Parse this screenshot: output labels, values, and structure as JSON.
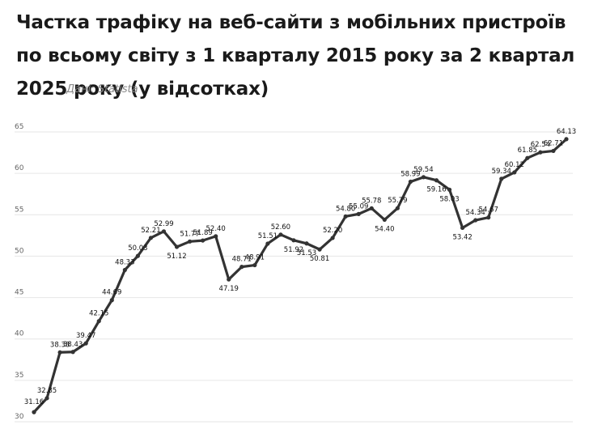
{
  "header": {
    "title": "Частка трафіку на веб-сайти з мобільних пристроїв по всьому світу з 1 кварталу 2015 року за 2 квартал 2025 року (у відсотках)",
    "source": "Дані: Statista"
  },
  "chart_data": {
    "type": "line",
    "title": "Частка трафіку на веб-сайти з мобільних пристроїв по всьому світу з 1 кварталу 2015 року за 2 квартал 2025 року (у відсотках)",
    "ylim": [
      30,
      65
    ],
    "yticks": [
      30,
      35,
      40,
      45,
      50,
      55,
      60,
      65
    ],
    "grid": true,
    "line_color": "#333333",
    "series": [
      {
        "values": [
          31.16,
          32.85,
          38.38,
          38.43,
          39.47,
          42.15,
          44.69,
          48.33,
          50.03,
          52.21,
          52.99,
          51.12,
          51.77,
          51.89,
          52.4,
          47.19,
          48.71,
          48.91,
          51.51,
          52.6,
          51.92,
          51.53,
          50.81,
          52.2,
          54.8,
          55.09,
          55.78,
          54.4,
          55.79,
          58.99,
          59.54,
          59.16,
          58.03,
          53.42,
          54.34,
          54.67,
          59.34,
          60.12,
          61.85,
          62.54,
          62.71,
          64.13
        ],
        "labels": [
          "31.16",
          "32.85",
          "38.38",
          "38.43",
          "39.47",
          "42.15",
          "44.69",
          "48.33",
          "50.03",
          "52.21",
          "52.99",
          "51.12",
          "51.77",
          "51.89",
          "52.40",
          "47.19",
          "48.71",
          "48.91",
          "51.51",
          "52.60",
          "51.92",
          "51.53",
          "50.81",
          "52.20",
          "54.80",
          "55.09",
          "55.78",
          "54.40",
          "55.79",
          "58.99",
          "59.54",
          "59.16",
          "58.03",
          "53.42",
          "54.34",
          "54.67",
          "59.34",
          "60.12",
          "61.85",
          "62.54",
          "62.71",
          "64.13"
        ]
      }
    ]
  }
}
